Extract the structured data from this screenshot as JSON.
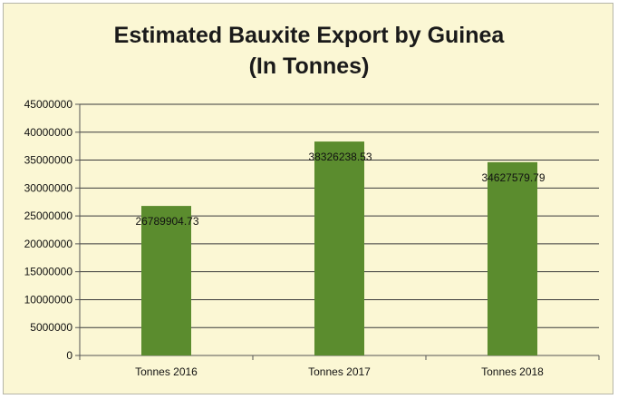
{
  "chart_data": {
    "type": "bar",
    "title": "Estimated Bauxite Export by Guinea",
    "subtitle": "(In Tonnes)",
    "categories": [
      "Tonnes 2016",
      "Tonnes 2017",
      "Tonnes 2018"
    ],
    "values": [
      26789904.73,
      38326238.53,
      34627579.79
    ],
    "data_labels": [
      "26789904.73",
      "38326238.53",
      "34627579.79"
    ],
    "y_ticks": [
      0,
      5000000,
      10000000,
      15000000,
      20000000,
      25000000,
      30000000,
      35000000,
      40000000,
      45000000
    ],
    "ylim": [
      0,
      45000000
    ],
    "xlabel": "",
    "ylabel": "",
    "grid": true,
    "legend": "none",
    "colors": {
      "bar": "#5b8c2e",
      "background": "#fbf7d4",
      "gridline": "#3a3a3a"
    }
  }
}
